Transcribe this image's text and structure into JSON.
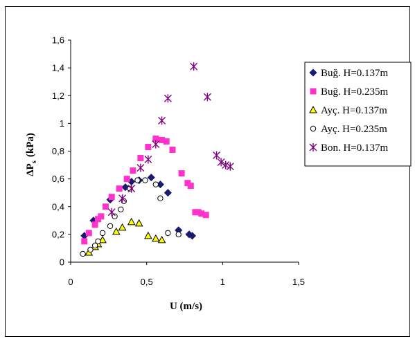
{
  "chart_data": {
    "type": "scatter",
    "xlabel": "U (m/s)",
    "ylabel_main": "ΔP",
    "ylabel_sub": "s",
    "ylabel_unit": "(kPa)",
    "xlim": [
      0,
      1.5
    ],
    "ylim": [
      0,
      1.6
    ],
    "x_ticks": [
      0,
      0.5,
      1,
      1.5
    ],
    "x_tick_labels": [
      "0",
      "0,5",
      "1",
      "1,5"
    ],
    "y_ticks": [
      0,
      0.2,
      0.4,
      0.6,
      0.8,
      1,
      1.2,
      1.4,
      1.6
    ],
    "y_tick_labels": [
      "0",
      "0,2",
      "0,4",
      "0,6",
      "0,8",
      "1",
      "1,2",
      "1,4",
      "1,6"
    ],
    "grid": false,
    "legend_position": "right",
    "series": [
      {
        "name": "Buğ. H=0.137m",
        "marker": "diamond",
        "color": "#1a1a6e",
        "x": [
          0.09,
          0.15,
          0.26,
          0.36,
          0.4,
          0.45,
          0.53,
          0.59,
          0.64,
          0.71,
          0.78,
          0.8
        ],
        "y": [
          0.19,
          0.3,
          0.45,
          0.54,
          0.58,
          0.59,
          0.61,
          0.56,
          0.5,
          0.23,
          0.2,
          0.19
        ]
      },
      {
        "name": "Buğ. H=0.235m",
        "marker": "square",
        "color": "#ff33cc",
        "x": [
          0.09,
          0.12,
          0.16,
          0.18,
          0.2,
          0.23,
          0.27,
          0.32,
          0.37,
          0.41,
          0.46,
          0.51,
          0.56,
          0.6,
          0.63,
          0.67,
          0.73,
          0.77,
          0.79,
          0.82,
          0.84,
          0.86,
          0.89
        ],
        "y": [
          0.15,
          0.21,
          0.27,
          0.31,
          0.33,
          0.4,
          0.47,
          0.53,
          0.6,
          0.66,
          0.75,
          0.83,
          0.89,
          0.88,
          0.87,
          0.81,
          0.64,
          0.57,
          0.55,
          0.36,
          0.36,
          0.35,
          0.34
        ]
      },
      {
        "name": "Ayç. H=0.137m",
        "marker": "triangle",
        "color": "#ffff00",
        "x": [
          0.12,
          0.16,
          0.18,
          0.21,
          0.3,
          0.34,
          0.4,
          0.45,
          0.51,
          0.56,
          0.6
        ],
        "y": [
          0.07,
          0.11,
          0.13,
          0.16,
          0.22,
          0.25,
          0.29,
          0.28,
          0.19,
          0.17,
          0.16
        ]
      },
      {
        "name": "Ayç. H=0.235m",
        "marker": "circle",
        "color": "#ffffff",
        "x": [
          0.08,
          0.13,
          0.16,
          0.18,
          0.21,
          0.26,
          0.29,
          0.33,
          0.35,
          0.39,
          0.44,
          0.49,
          0.56,
          0.59,
          0.64,
          0.71
        ],
        "y": [
          0.06,
          0.09,
          0.12,
          0.15,
          0.21,
          0.26,
          0.33,
          0.38,
          0.44,
          0.53,
          0.59,
          0.59,
          0.56,
          0.46,
          0.21,
          0.2
        ]
      },
      {
        "name": "Bon. H=0.137m",
        "marker": "star",
        "color": "#800080",
        "x": [
          0.27,
          0.34,
          0.4,
          0.46,
          0.51,
          0.56,
          0.6,
          0.64,
          0.81,
          0.9,
          0.96,
          0.99,
          1.02,
          1.05
        ],
        "y": [
          0.36,
          0.46,
          0.53,
          0.68,
          0.74,
          0.85,
          1.02,
          1.18,
          1.41,
          1.19,
          0.77,
          0.72,
          0.7,
          0.69
        ]
      }
    ]
  }
}
